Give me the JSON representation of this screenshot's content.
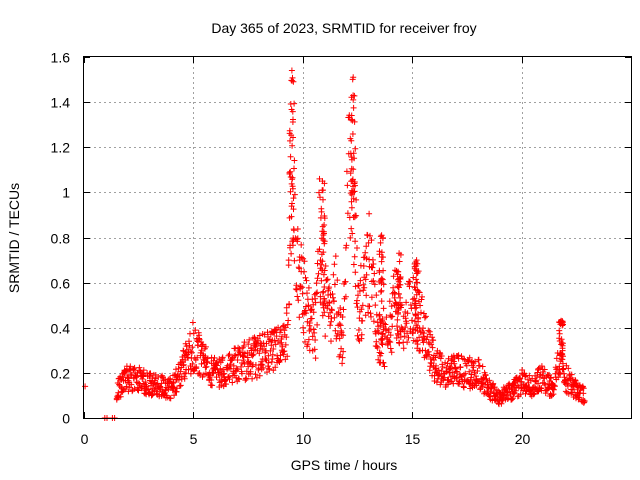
{
  "chart_data": {
    "type": "scatter",
    "title": "Day 365 of 2023, SRMTID for receiver froy",
    "xlabel": "GPS time / hours",
    "ylabel": "SRMTID / TECUs",
    "xlim": [
      0,
      25
    ],
    "ylim": [
      0,
      1.6
    ],
    "xticks": [
      0,
      5,
      10,
      15,
      20
    ],
    "xtick_labels": [
      "0",
      "5",
      "10",
      "15",
      "20"
    ],
    "yticks": [
      0,
      0.2,
      0.4,
      0.6,
      0.8,
      1.0,
      1.2,
      1.4,
      1.6
    ],
    "ytick_labels": [
      "0",
      "0.2",
      "0.4",
      "0.6",
      "0.8",
      "1",
      "1.2",
      "1.4",
      "1.6"
    ],
    "grid": true,
    "marker": "+",
    "color": "#ff0000",
    "envelope": [
      [
        0.0,
        0.14
      ],
      [
        1.0,
        0.0
      ],
      [
        1.4,
        0.0
      ],
      [
        1.5,
        0.12
      ],
      [
        2.0,
        0.18
      ],
      [
        2.5,
        0.17
      ],
      [
        3.0,
        0.15
      ],
      [
        3.5,
        0.14
      ],
      [
        4.0,
        0.13
      ],
      [
        4.5,
        0.22
      ],
      [
        5.0,
        0.32
      ],
      [
        5.5,
        0.24
      ],
      [
        6.0,
        0.2
      ],
      [
        6.5,
        0.2
      ],
      [
        7.0,
        0.24
      ],
      [
        7.5,
        0.26
      ],
      [
        8.0,
        0.27
      ],
      [
        8.5,
        0.3
      ],
      [
        9.0,
        0.3
      ],
      [
        9.3,
        0.4
      ],
      [
        9.5,
        1.25
      ],
      [
        9.7,
        0.65
      ],
      [
        10.0,
        0.55
      ],
      [
        10.3,
        0.45
      ],
      [
        10.6,
        0.4
      ],
      [
        10.8,
        0.9
      ],
      [
        11.0,
        0.55
      ],
      [
        11.3,
        0.4
      ],
      [
        11.5,
        0.55
      ],
      [
        11.8,
        0.3
      ],
      [
        12.1,
        1.05
      ],
      [
        12.3,
        1.25
      ],
      [
        12.5,
        0.5
      ],
      [
        12.8,
        0.55
      ],
      [
        13.0,
        0.7
      ],
      [
        13.3,
        0.45
      ],
      [
        13.6,
        0.3
      ],
      [
        14.0,
        0.4
      ],
      [
        14.3,
        0.6
      ],
      [
        14.6,
        0.35
      ],
      [
        15.0,
        0.55
      ],
      [
        15.3,
        0.45
      ],
      [
        15.6,
        0.35
      ],
      [
        16.0,
        0.25
      ],
      [
        16.5,
        0.2
      ],
      [
        17.0,
        0.22
      ],
      [
        17.5,
        0.2
      ],
      [
        18.0,
        0.2
      ],
      [
        18.5,
        0.13
      ],
      [
        19.0,
        0.09
      ],
      [
        19.5,
        0.12
      ],
      [
        20.0,
        0.16
      ],
      [
        20.5,
        0.14
      ],
      [
        21.0,
        0.18
      ],
      [
        21.5,
        0.12
      ],
      [
        21.8,
        0.36
      ],
      [
        22.0,
        0.18
      ],
      [
        22.5,
        0.12
      ],
      [
        22.9,
        0.1
      ]
    ],
    "peaks": [
      {
        "x": 9.5,
        "y": 1.54
      },
      {
        "x": 10.9,
        "y": 1.05
      },
      {
        "x": 12.3,
        "y": 1.43
      },
      {
        "x": 13.6,
        "y": 0.81
      },
      {
        "x": 14.4,
        "y": 0.73
      },
      {
        "x": 15.2,
        "y": 0.7
      },
      {
        "x": 21.8,
        "y": 0.43
      }
    ],
    "zero_points": [
      {
        "x": 0.95,
        "y": 0.0
      },
      {
        "x": 1.05,
        "y": 0.0
      },
      {
        "x": 1.3,
        "y": 0.0
      },
      {
        "x": 1.4,
        "y": 0.0
      }
    ]
  }
}
